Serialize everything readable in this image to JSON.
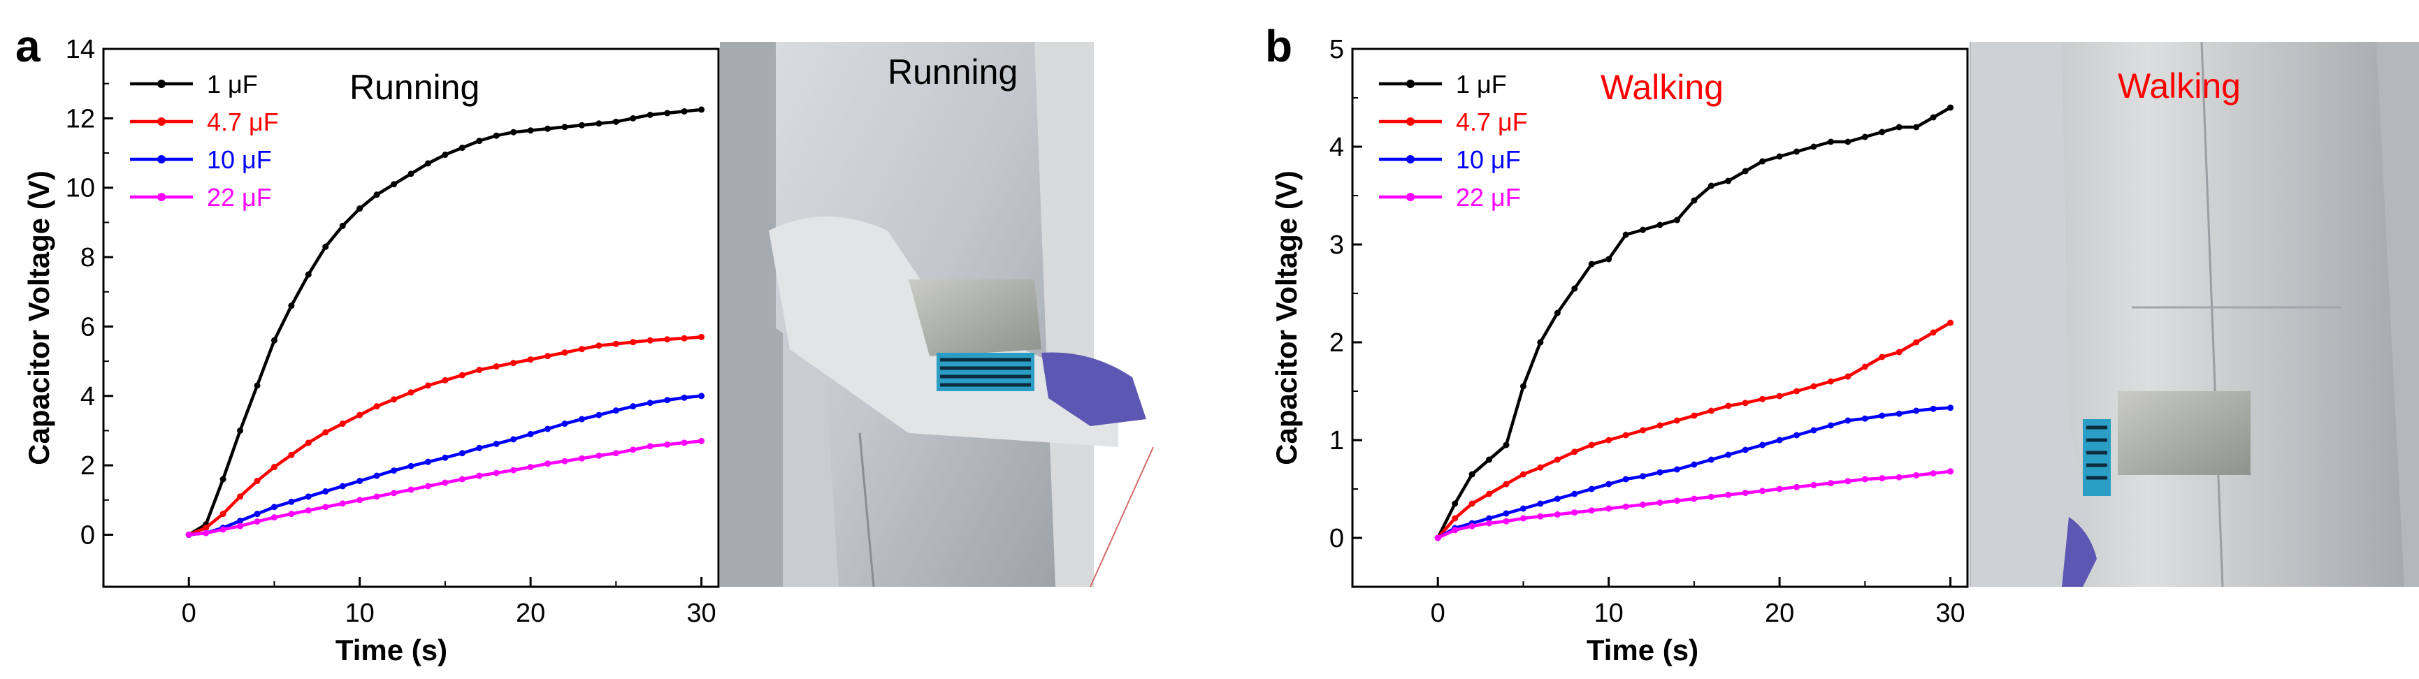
{
  "panels": [
    {
      "letter": "a",
      "photo_label": "Running",
      "photo_label_color": "#000000",
      "chart_data": {
        "type": "line",
        "title": "",
        "annotation": "Running",
        "annotation_color": "#000000",
        "xlabel": "Time (s)",
        "ylabel": "Capacitor Voltage (V)",
        "xlim": [
          -5,
          31
        ],
        "ylim": [
          -1.5,
          14
        ],
        "xticks": [
          0,
          10,
          20,
          30
        ],
        "yticks": [
          0,
          2,
          4,
          6,
          8,
          10,
          12,
          14
        ],
        "legend_position": "top-left",
        "x": [
          0,
          1,
          2,
          3,
          4,
          5,
          6,
          7,
          8,
          9,
          10,
          11,
          12,
          13,
          14,
          15,
          16,
          17,
          18,
          19,
          20,
          21,
          22,
          23,
          24,
          25,
          26,
          27,
          28,
          29,
          30
        ],
        "series": [
          {
            "name": "1 μF",
            "color": "#000000",
            "values": [
              0,
              0.3,
              1.6,
              3.0,
              4.3,
              5.6,
              6.6,
              7.5,
              8.3,
              8.9,
              9.4,
              9.8,
              10.1,
              10.4,
              10.7,
              10.95,
              11.15,
              11.35,
              11.5,
              11.6,
              11.65,
              11.7,
              11.75,
              11.8,
              11.85,
              11.9,
              12.0,
              12.1,
              12.15,
              12.2,
              12.25
            ]
          },
          {
            "name": "4.7 μF",
            "color": "#ff0000",
            "values": [
              0,
              0.2,
              0.6,
              1.1,
              1.55,
              1.95,
              2.3,
              2.65,
              2.95,
              3.2,
              3.45,
              3.7,
              3.9,
              4.1,
              4.3,
              4.45,
              4.6,
              4.75,
              4.85,
              4.95,
              5.05,
              5.15,
              5.25,
              5.35,
              5.45,
              5.5,
              5.55,
              5.6,
              5.63,
              5.66,
              5.7
            ]
          },
          {
            "name": "10 μF",
            "color": "#0000ff",
            "values": [
              0,
              0.05,
              0.2,
              0.4,
              0.6,
              0.8,
              0.95,
              1.1,
              1.25,
              1.4,
              1.55,
              1.7,
              1.85,
              1.98,
              2.1,
              2.22,
              2.35,
              2.5,
              2.62,
              2.75,
              2.9,
              3.05,
              3.2,
              3.33,
              3.45,
              3.58,
              3.7,
              3.8,
              3.88,
              3.95,
              4.0
            ]
          },
          {
            "name": "22 μF",
            "color": "#ff00ff",
            "values": [
              0,
              0.05,
              0.15,
              0.25,
              0.38,
              0.5,
              0.6,
              0.7,
              0.8,
              0.9,
              1.0,
              1.1,
              1.2,
              1.3,
              1.4,
              1.5,
              1.6,
              1.7,
              1.78,
              1.86,
              1.95,
              2.05,
              2.12,
              2.2,
              2.28,
              2.35,
              2.45,
              2.55,
              2.6,
              2.65,
              2.7
            ]
          }
        ]
      }
    },
    {
      "letter": "b",
      "photo_label": "Walking",
      "photo_label_color": "#ff0000",
      "chart_data": {
        "type": "line",
        "title": "",
        "annotation": "Walking",
        "annotation_color": "#ff0000",
        "xlabel": "Time (s)",
        "ylabel": "Capacitor Voltage (V)",
        "xlim": [
          -5,
          31
        ],
        "ylim": [
          -0.5,
          5
        ],
        "xticks": [
          0,
          10,
          20,
          30
        ],
        "yticks": [
          0,
          1,
          2,
          3,
          4,
          5
        ],
        "legend_position": "top-left",
        "x": [
          0,
          1,
          2,
          3,
          4,
          5,
          6,
          7,
          8,
          9,
          10,
          11,
          12,
          13,
          14,
          15,
          16,
          17,
          18,
          19,
          20,
          21,
          22,
          23,
          24,
          25,
          26,
          27,
          28,
          29,
          30
        ],
        "series": [
          {
            "name": "1 μF",
            "color": "#000000",
            "values": [
              0,
              0.35,
              0.65,
              0.8,
              0.95,
              1.55,
              2.0,
              2.3,
              2.55,
              2.8,
              2.85,
              3.1,
              3.15,
              3.2,
              3.25,
              3.45,
              3.6,
              3.65,
              3.75,
              3.85,
              3.9,
              3.95,
              4.0,
              4.05,
              4.05,
              4.1,
              4.15,
              4.2,
              4.2,
              4.3,
              4.4
            ]
          },
          {
            "name": "4.7 μF",
            "color": "#ff0000",
            "values": [
              0,
              0.2,
              0.35,
              0.45,
              0.55,
              0.65,
              0.72,
              0.8,
              0.88,
              0.95,
              1.0,
              1.05,
              1.1,
              1.15,
              1.2,
              1.25,
              1.3,
              1.35,
              1.38,
              1.42,
              1.45,
              1.5,
              1.55,
              1.6,
              1.65,
              1.75,
              1.85,
              1.9,
              2.0,
              2.1,
              2.2
            ]
          },
          {
            "name": "10 μF",
            "color": "#0000ff",
            "values": [
              0,
              0.1,
              0.15,
              0.2,
              0.25,
              0.3,
              0.35,
              0.4,
              0.45,
              0.5,
              0.55,
              0.6,
              0.63,
              0.67,
              0.7,
              0.75,
              0.8,
              0.85,
              0.9,
              0.95,
              1.0,
              1.05,
              1.1,
              1.15,
              1.2,
              1.22,
              1.25,
              1.27,
              1.3,
              1.32,
              1.33
            ]
          },
          {
            "name": "22 μF",
            "color": "#ff00ff",
            "values": [
              0,
              0.08,
              0.12,
              0.15,
              0.17,
              0.2,
              0.22,
              0.24,
              0.26,
              0.28,
              0.3,
              0.32,
              0.34,
              0.36,
              0.38,
              0.4,
              0.42,
              0.44,
              0.46,
              0.48,
              0.5,
              0.52,
              0.54,
              0.56,
              0.58,
              0.6,
              0.61,
              0.62,
              0.64,
              0.66,
              0.68
            ]
          }
        ]
      }
    }
  ]
}
